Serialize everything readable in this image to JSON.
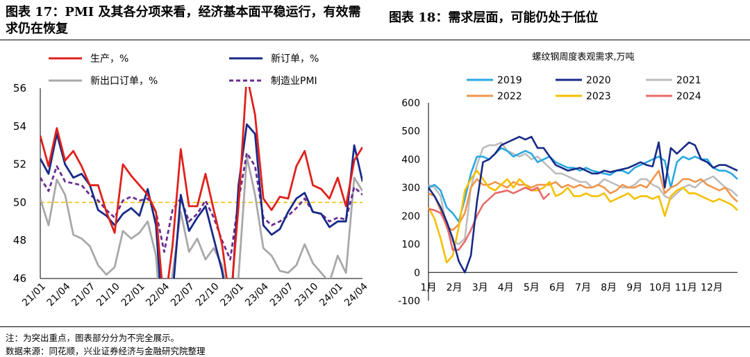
{
  "titles": {
    "left": "图表 17：PMI 及其各分项来看，经济基本面平稳运行，有效需求仍在恢复",
    "right": "图表 18：需求层面，可能仍处于低位"
  },
  "footer": {
    "note": "注：为突出重点，图表部分分为不完全展示。",
    "source": "数据来源：同花顺，兴业证券经济与金融研究院整理"
  },
  "colors": {
    "production": "#e0201b",
    "new_orders": "#172a87",
    "export_orders": "#a8a8a8",
    "pmi": "#6a2c91",
    "y2019": "#29a8e0",
    "y2020": "#172a87",
    "y2021": "#bdbdbd",
    "y2022": "#f0954a",
    "y2023": "#f5c000",
    "y2024": "#e96a6a",
    "ref50": "#f5c000"
  },
  "chart_data": [
    {
      "type": "line",
      "title": "",
      "xlabel": "",
      "ylabel": "",
      "ylim": [
        46,
        56
      ],
      "yticks": [
        46,
        48,
        50,
        52,
        54,
        56
      ],
      "x_ticklabels": [
        "21/01",
        "21/04",
        "21/07",
        "21/10",
        "22/01",
        "22/04",
        "22/07",
        "22/10",
        "23/01",
        "23/04",
        "23/07",
        "23/10",
        "24/01",
        "24/04"
      ],
      "x": [
        "21/01",
        "21/02",
        "21/03",
        "21/04",
        "21/05",
        "21/06",
        "21/07",
        "21/08",
        "21/09",
        "21/10",
        "21/11",
        "21/12",
        "22/01",
        "22/02",
        "22/03",
        "22/04",
        "22/05",
        "22/06",
        "22/07",
        "22/08",
        "22/09",
        "22/10",
        "22/11",
        "22/12",
        "23/01",
        "23/02",
        "23/03",
        "23/04",
        "23/05",
        "23/06",
        "23/07",
        "23/08",
        "23/09",
        "23/10",
        "23/11",
        "23/12",
        "24/01",
        "24/02",
        "24/03",
        "24/04"
      ],
      "reference_line": 50,
      "legend_position": "top",
      "series": [
        {
          "name": "生产，%",
          "key": "production",
          "style": "solid",
          "values": [
            53.5,
            51.9,
            53.9,
            52.2,
            52.7,
            51.9,
            50.9,
            50.9,
            49.5,
            48.4,
            52.0,
            51.4,
            50.9,
            50.4,
            49.5,
            44.4,
            47.7,
            52.8,
            49.8,
            49.8,
            51.5,
            49.6,
            47.8,
            44.6,
            49.8,
            56.7,
            54.6,
            50.2,
            49.6,
            50.3,
            50.2,
            51.9,
            52.7,
            50.9,
            50.7,
            50.2,
            51.3,
            49.8,
            52.2,
            52.9
          ]
        },
        {
          "name": "新订单，%",
          "key": "new_orders",
          "style": "solid",
          "values": [
            52.3,
            51.5,
            53.6,
            52.0,
            51.3,
            51.5,
            50.9,
            49.6,
            49.3,
            48.8,
            49.4,
            49.7,
            49.3,
            50.7,
            48.8,
            42.6,
            45.1,
            50.4,
            48.5,
            49.2,
            49.8,
            48.1,
            46.4,
            43.9,
            50.9,
            54.1,
            53.6,
            48.8,
            48.3,
            48.6,
            49.5,
            50.2,
            50.5,
            49.5,
            49.4,
            48.7,
            49.0,
            49.0,
            53.0,
            51.1
          ]
        },
        {
          "name": "新出口订单，%",
          "key": "export_orders",
          "style": "solid",
          "values": [
            50.2,
            48.8,
            51.2,
            50.4,
            48.3,
            48.1,
            47.7,
            46.7,
            46.2,
            46.6,
            48.5,
            48.1,
            48.4,
            49.0,
            47.2,
            41.6,
            46.2,
            49.5,
            47.4,
            48.1,
            47.0,
            47.6,
            46.7,
            44.2,
            46.1,
            52.4,
            50.4,
            47.6,
            47.2,
            46.4,
            46.3,
            46.7,
            47.8,
            46.8,
            46.3,
            45.8,
            47.2,
            46.3,
            51.3,
            50.6
          ]
        },
        {
          "name": "制造业PMI",
          "key": "pmi",
          "style": "dashed",
          "values": [
            51.3,
            50.6,
            51.9,
            51.1,
            51.0,
            50.9,
            50.4,
            50.1,
            49.6,
            49.2,
            50.1,
            50.3,
            50.1,
            50.2,
            49.5,
            47.4,
            49.6,
            50.2,
            49.0,
            49.4,
            50.1,
            49.2,
            48.0,
            47.0,
            50.1,
            52.6,
            51.9,
            49.2,
            48.8,
            49.0,
            49.3,
            49.7,
            50.2,
            49.5,
            49.4,
            49.0,
            49.2,
            49.1,
            50.8,
            50.4
          ]
        }
      ]
    },
    {
      "type": "line",
      "title": "螺纹钢周度表观需求,万吨",
      "xlabel": "",
      "ylabel": "",
      "ylim": [
        -100,
        600
      ],
      "yticks": [
        -100,
        0,
        100,
        200,
        300,
        400,
        500,
        600
      ],
      "months": [
        "1月",
        "2月",
        "3月",
        "4月",
        "5月",
        "6月",
        "7月",
        "8月",
        "9月",
        "10月",
        "11月",
        "12月"
      ],
      "x_unit": "week (1-52)",
      "legend_position": "top",
      "series": [
        {
          "name": "2019",
          "key": "y2019",
          "x": [
            1,
            2,
            3,
            4,
            5,
            6,
            7,
            8,
            9,
            10,
            11,
            12,
            13,
            14,
            15,
            16,
            17,
            18,
            19,
            20,
            21,
            22,
            23,
            24,
            25,
            26,
            27,
            28,
            29,
            30,
            31,
            32,
            33,
            34,
            35,
            36,
            37,
            38,
            39,
            40,
            41,
            42,
            43,
            44,
            45,
            46,
            47,
            48,
            49,
            50,
            51,
            52
          ],
          "values": [
            300,
            310,
            290,
            230,
            210,
            180,
            260,
            350,
            410,
            410,
            400,
            420,
            440,
            430,
            410,
            420,
            430,
            420,
            390,
            400,
            410,
            390,
            380,
            370,
            370,
            360,
            370,
            360,
            355,
            350,
            345,
            360,
            360,
            350,
            370,
            380,
            390,
            400,
            410,
            395,
            300,
            390,
            410,
            400,
            410,
            400,
            400,
            370,
            360,
            360,
            350,
            330
          ]
        },
        {
          "name": "2020",
          "key": "y2020",
          "x": [
            1,
            2,
            3,
            4,
            5,
            6,
            7,
            8,
            9,
            10,
            11,
            12,
            13,
            14,
            15,
            16,
            17,
            18,
            19,
            20,
            21,
            22,
            23,
            24,
            25,
            26,
            27,
            28,
            29,
            30,
            31,
            32,
            33,
            34,
            35,
            36,
            37,
            38,
            39,
            40,
            41,
            42,
            43,
            44,
            45,
            46,
            47,
            48,
            49,
            50,
            51,
            52
          ],
          "values": [
            300,
            270,
            230,
            180,
            120,
            40,
            0,
            60,
            250,
            390,
            400,
            420,
            450,
            460,
            470,
            480,
            470,
            480,
            440,
            440,
            410,
            380,
            370,
            360,
            365,
            370,
            360,
            350,
            350,
            360,
            355,
            360,
            365,
            370,
            380,
            390,
            380,
            375,
            460,
            300,
            440,
            420,
            440,
            460,
            450,
            400,
            390,
            370,
            380,
            380,
            370,
            360
          ]
        },
        {
          "name": "2021",
          "key": "y2021",
          "x": [
            1,
            2,
            3,
            4,
            5,
            6,
            7,
            8,
            9,
            10,
            11,
            12,
            13,
            14,
            15,
            16,
            17,
            18,
            19,
            20,
            21,
            22,
            23,
            24,
            25,
            26,
            27,
            28,
            29,
            30,
            31,
            32,
            33,
            34,
            35,
            36,
            37,
            38,
            39,
            40,
            41,
            42,
            43,
            44,
            45,
            46,
            47,
            48,
            49,
            50,
            51,
            52
          ],
          "values": [
            310,
            300,
            270,
            160,
            110,
            100,
            120,
            300,
            380,
            440,
            450,
            450,
            460,
            430,
            420,
            410,
            420,
            400,
            410,
            390,
            370,
            350,
            350,
            340,
            330,
            320,
            320,
            300,
            310,
            330,
            320,
            310,
            300,
            300,
            310,
            330,
            330,
            310,
            300,
            270,
            260,
            280,
            300,
            310,
            300,
            320,
            330,
            340,
            320,
            300,
            290,
            270
          ]
        },
        {
          "name": "2022",
          "key": "y2022",
          "x": [
            1,
            2,
            3,
            4,
            5,
            6,
            7,
            8,
            9,
            10,
            11,
            12,
            13,
            14,
            15,
            16,
            17,
            18,
            19,
            20,
            21,
            22,
            23,
            24,
            25,
            26,
            27,
            28,
            29,
            30,
            31,
            32,
            33,
            34,
            35,
            36,
            37,
            38,
            39,
            40,
            41,
            42,
            43,
            44,
            45,
            46,
            47,
            48,
            49,
            50,
            51,
            52
          ],
          "values": [
            280,
            270,
            220,
            160,
            150,
            170,
            210,
            300,
            330,
            310,
            310,
            320,
            310,
            300,
            320,
            310,
            310,
            300,
            310,
            310,
            310,
            320,
            300,
            310,
            300,
            310,
            300,
            300,
            310,
            300,
            280,
            290,
            310,
            300,
            300,
            310,
            300,
            330,
            360,
            280,
            300,
            310,
            330,
            330,
            320,
            330,
            310,
            300,
            290,
            300,
            270,
            250
          ]
        },
        {
          "name": "2023",
          "key": "y2023",
          "x": [
            1,
            2,
            3,
            4,
            5,
            6,
            7,
            8,
            9,
            10,
            11,
            12,
            13,
            14,
            15,
            16,
            17,
            18,
            19,
            20,
            21,
            22,
            23,
            24,
            25,
            26,
            27,
            28,
            29,
            30,
            31,
            32,
            33,
            34,
            35,
            36,
            37,
            38,
            39,
            40,
            41,
            42,
            43,
            44,
            45,
            46,
            47,
            48,
            49,
            50,
            51,
            52
          ],
          "values": [
            230,
            190,
            120,
            35,
            60,
            160,
            290,
            330,
            360,
            330,
            300,
            290,
            310,
            330,
            300,
            330,
            310,
            290,
            290,
            300,
            320,
            270,
            280,
            300,
            270,
            270,
            280,
            270,
            270,
            280,
            250,
            260,
            270,
            280,
            260,
            270,
            270,
            260,
            270,
            200,
            270,
            290,
            300,
            280,
            280,
            270,
            260,
            250,
            260,
            250,
            240,
            220
          ]
        },
        {
          "name": "2024",
          "key": "y2024",
          "x": [
            1,
            2,
            3,
            4,
            5,
            6,
            7,
            8,
            9,
            10,
            11,
            12,
            13,
            14,
            15,
            16,
            17,
            18,
            19,
            20,
            21
          ],
          "values": [
            225,
            220,
            210,
            170,
            80,
            80,
            110,
            150,
            200,
            240,
            260,
            280,
            285,
            290,
            280,
            290,
            300,
            290,
            300,
            260,
            280
          ]
        }
      ]
    }
  ]
}
